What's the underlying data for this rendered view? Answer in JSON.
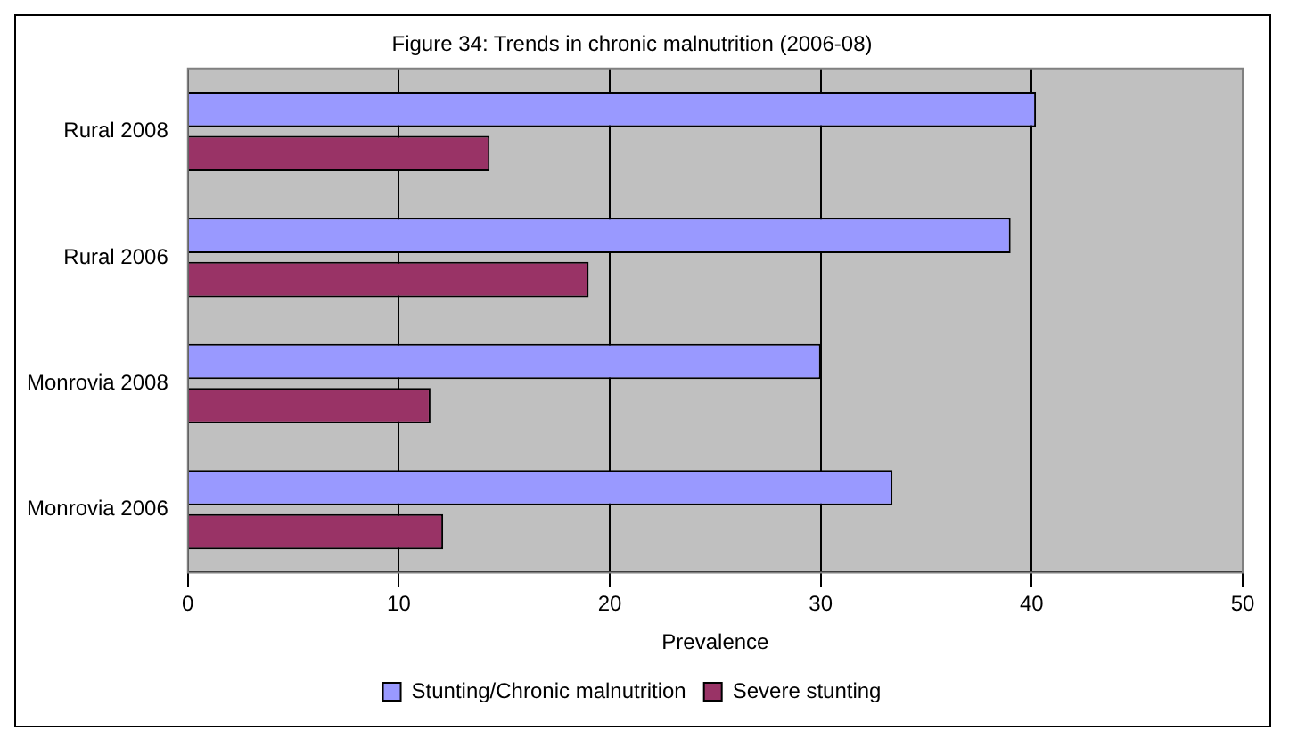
{
  "chart_data": {
    "type": "bar",
    "orientation": "horizontal",
    "title": "Figure 34: Trends in chronic malnutrition (2006-08)",
    "xlabel": "Prevalence",
    "categories": [
      "Rural 2008",
      "Rural 2006",
      "Monrovia 2008",
      "Monrovia 2006"
    ],
    "series": [
      {
        "name": "Stunting/Chronic malnutrition",
        "color": "#9999ff",
        "values": [
          40.2,
          39.0,
          30.0,
          33.4
        ]
      },
      {
        "name": "Severe stunting",
        "color": "#993366",
        "values": [
          14.3,
          19.0,
          11.5,
          12.1
        ]
      }
    ],
    "xlim": [
      0,
      50
    ],
    "xticks": [
      0,
      10,
      20,
      30,
      40,
      50
    ],
    "grid": "x",
    "legend": "bottom"
  }
}
